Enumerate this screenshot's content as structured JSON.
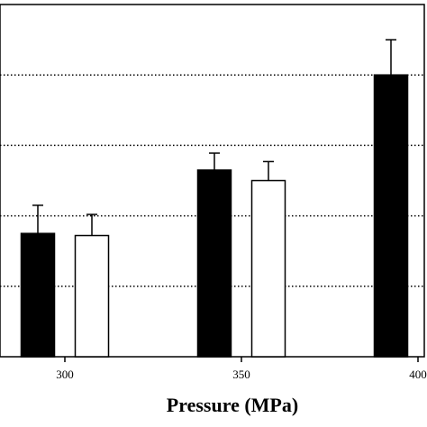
{
  "chart_data": {
    "type": "bar",
    "title": "",
    "xlabel": "Pressure (MPa)",
    "ylabel": "",
    "categories": [
      "300",
      "350",
      "400"
    ],
    "series": [
      {
        "fill": "#000000",
        "values": [
          1.75,
          2.65,
          4.0
        ],
        "errors": [
          0.4,
          0.24,
          0.5
        ]
      },
      {
        "fill": "#ffffff",
        "values": [
          1.72,
          2.5,
          null
        ],
        "errors": [
          0.3,
          0.27,
          null
        ]
      }
    ],
    "ylim": [
      0,
      5
    ],
    "yticks": [
      1,
      2,
      3,
      4
    ],
    "grid": "horizontal-dotted",
    "legend": "none"
  }
}
